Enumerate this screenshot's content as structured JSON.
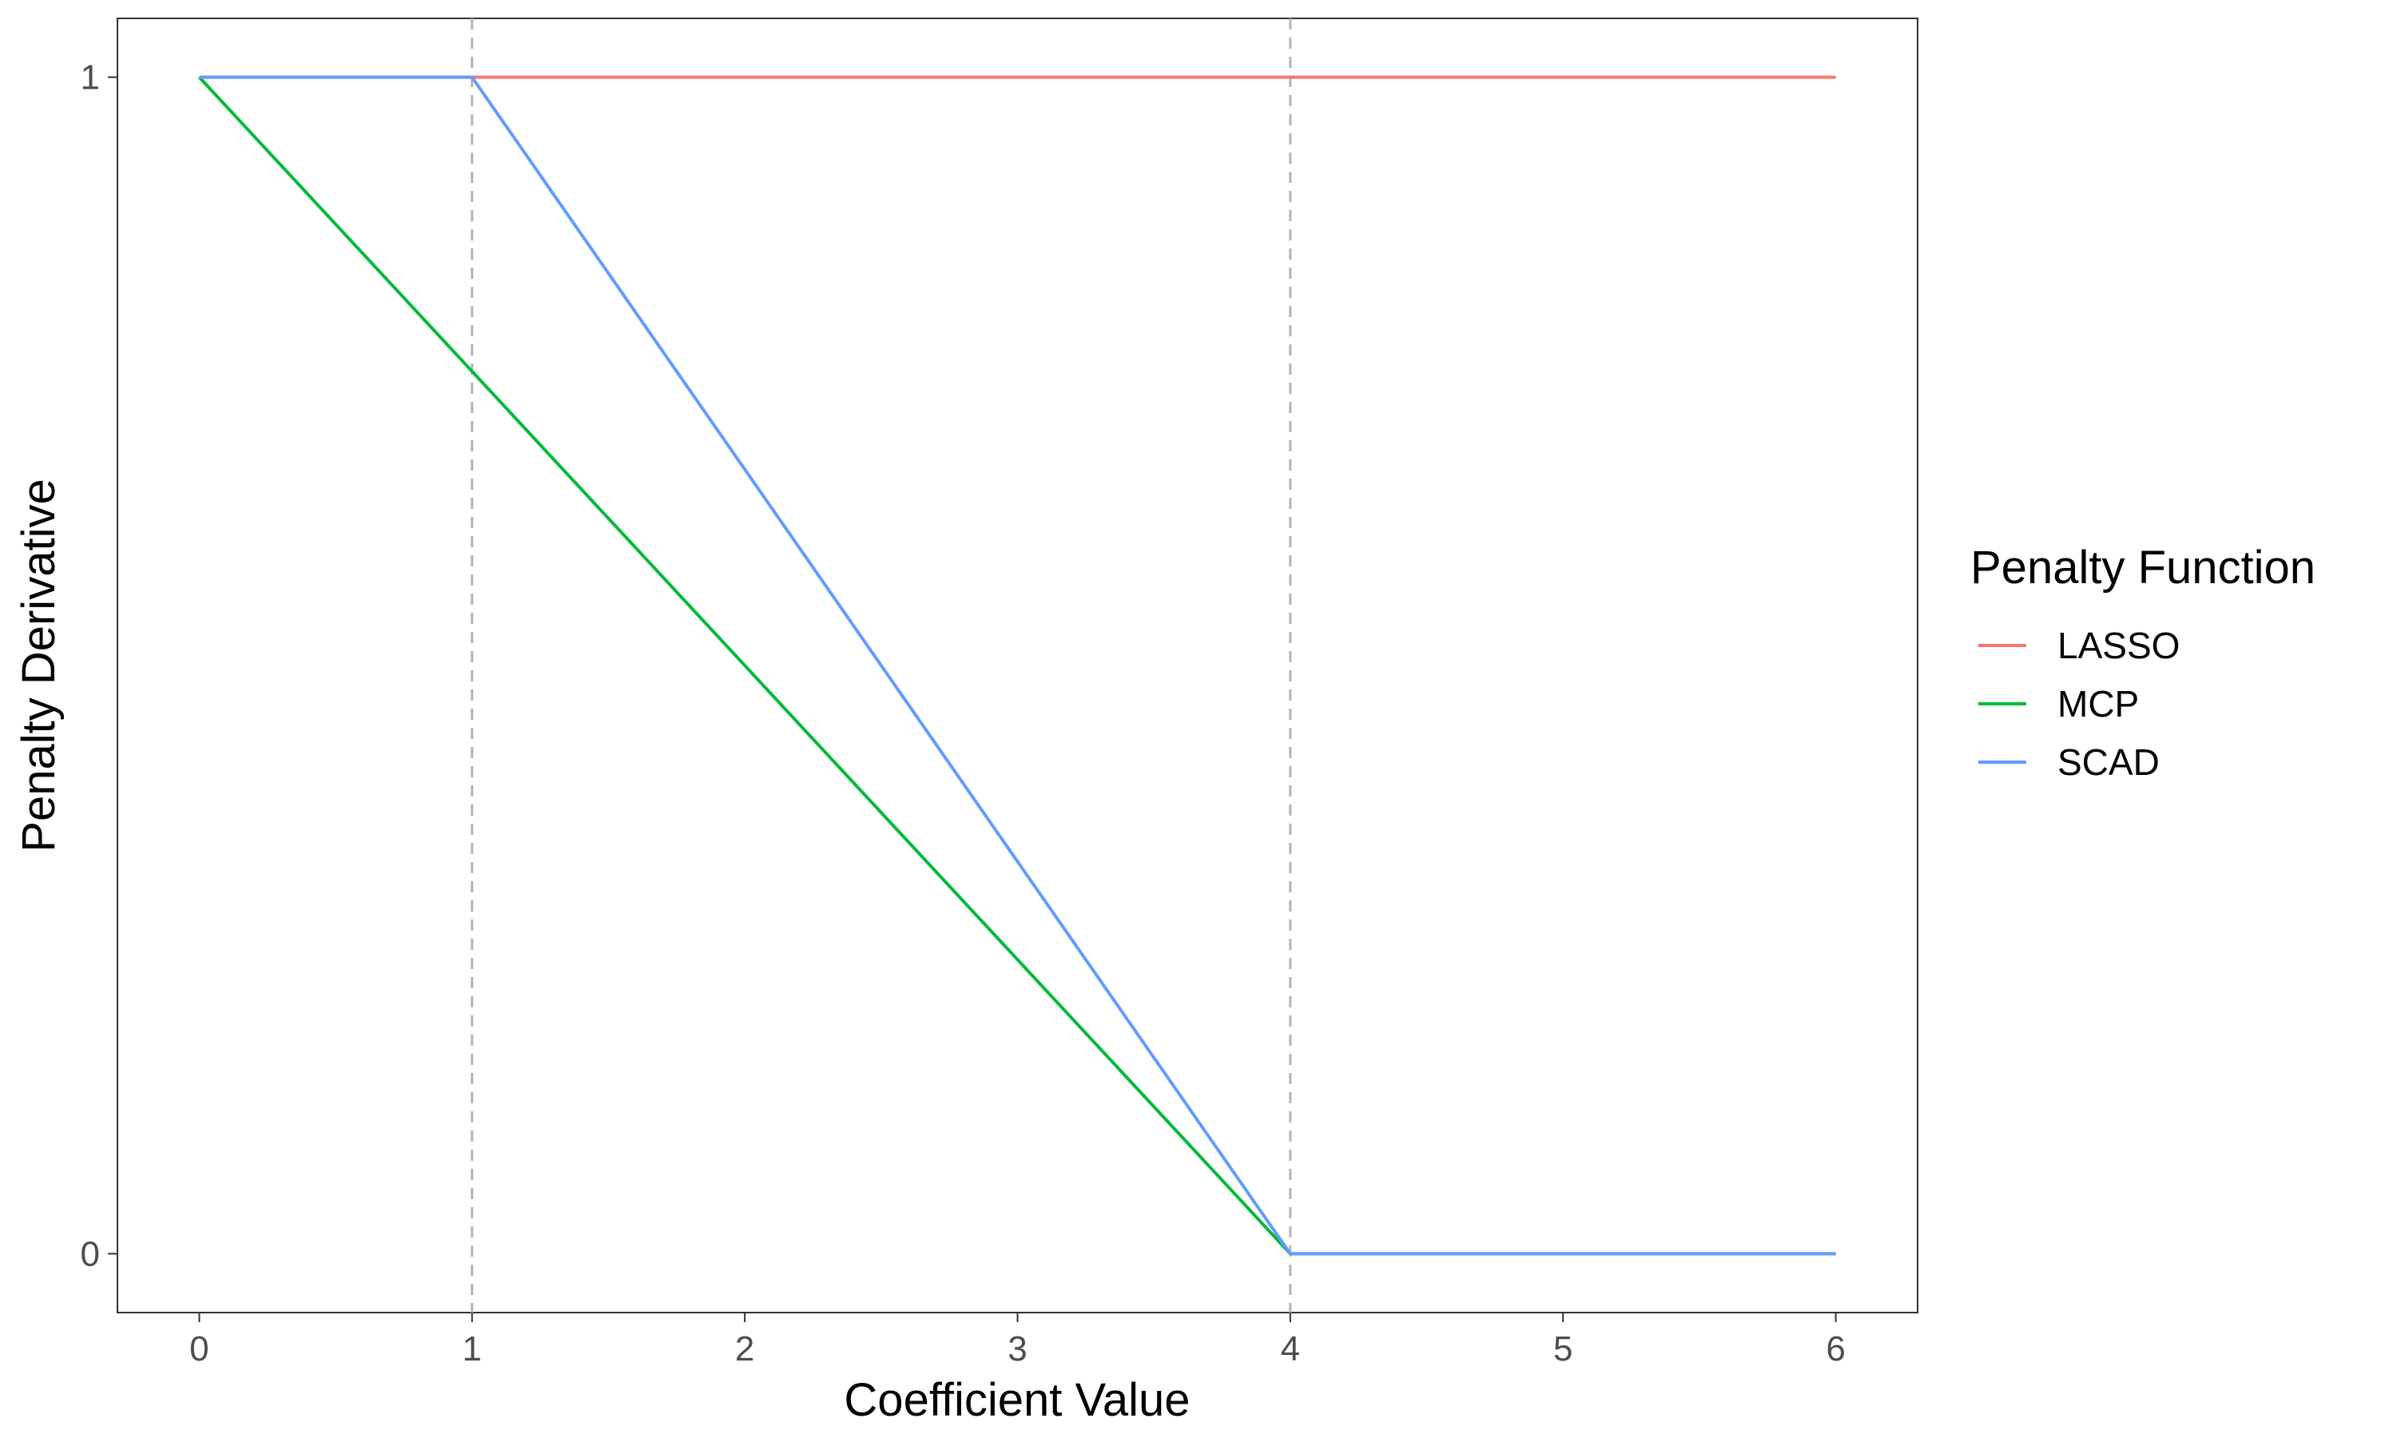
{
  "chart_data": {
    "type": "line",
    "xlabel": "Coefficient Value",
    "ylabel": "Penalty Derivative",
    "xlim": [
      -0.3,
      6.3
    ],
    "ylim": [
      -0.05,
      1.05
    ],
    "x_ticks": [
      0,
      1,
      2,
      3,
      4,
      5,
      6
    ],
    "y_ticks": [
      0,
      1
    ],
    "grid": false,
    "vlines": [
      1,
      4
    ],
    "legend": {
      "title": "Penalty Function",
      "placement": "right"
    },
    "series": [
      {
        "name": "LASSO",
        "color": "#F8766D",
        "x": [
          0,
          6
        ],
        "y": [
          1,
          1
        ]
      },
      {
        "name": "MCP",
        "color": "#00BA38",
        "x": [
          0,
          4,
          6
        ],
        "y": [
          1,
          0,
          0
        ]
      },
      {
        "name": "SCAD",
        "color": "#619CFF",
        "x": [
          0,
          1,
          4,
          6
        ],
        "y": [
          1,
          1,
          0,
          0
        ]
      }
    ]
  }
}
